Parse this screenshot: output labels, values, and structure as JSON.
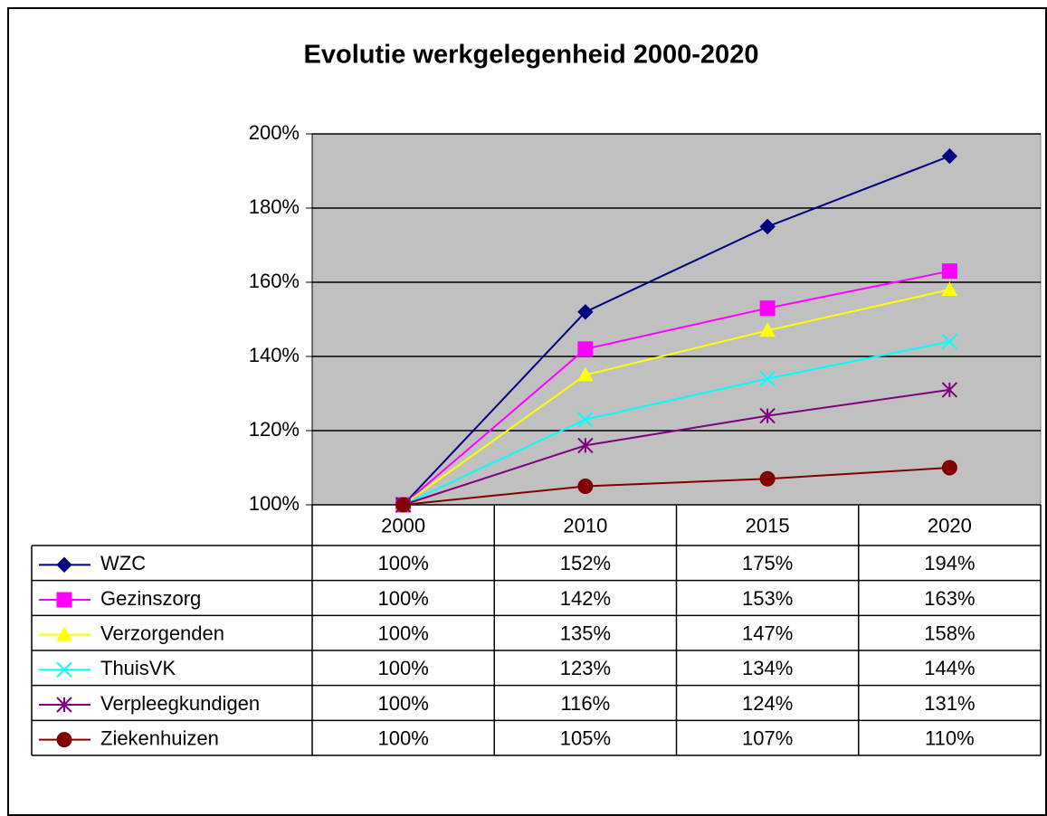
{
  "chart_data": {
    "type": "line",
    "title": "Evolutie werkgelegenheid 2000-2020",
    "categories": [
      "2000",
      "2010",
      "2015",
      "2020"
    ],
    "ylim": [
      100,
      200
    ],
    "yticks": [
      {
        "value": 100,
        "label": "100%"
      },
      {
        "value": 120,
        "label": "120%"
      },
      {
        "value": 140,
        "label": "140%"
      },
      {
        "value": 160,
        "label": "160%"
      },
      {
        "value": 180,
        "label": "180%"
      },
      {
        "value": 200,
        "label": "200%"
      }
    ],
    "grid": true,
    "series": [
      {
        "name": "WZC",
        "color": "#000080",
        "marker": "diamond",
        "values": [
          100,
          152,
          175,
          194
        ],
        "value_labels": [
          "100%",
          "152%",
          "175%",
          "194%"
        ]
      },
      {
        "name": "Gezinszorg",
        "color": "#ff00ff",
        "marker": "square",
        "values": [
          100,
          142,
          153,
          163
        ],
        "value_labels": [
          "100%",
          "142%",
          "153%",
          "163%"
        ]
      },
      {
        "name": "Verzorgenden",
        "color": "#ffff00",
        "marker": "triangle",
        "values": [
          100,
          135,
          147,
          158
        ],
        "value_labels": [
          "100%",
          "135%",
          "147%",
          "158%"
        ]
      },
      {
        "name": "ThuisVK",
        "color": "#00ffff",
        "marker": "x",
        "values": [
          100,
          123,
          134,
          144
        ],
        "value_labels": [
          "100%",
          "123%",
          "134%",
          "144%"
        ]
      },
      {
        "name": "Verpleegkundigen",
        "color": "#800080",
        "marker": "star",
        "values": [
          100,
          116,
          124,
          131
        ],
        "value_labels": [
          "100%",
          "116%",
          "124%",
          "131%"
        ]
      },
      {
        "name": "Ziekenhuizen",
        "color": "#800000",
        "marker": "circle",
        "values": [
          100,
          105,
          107,
          110
        ],
        "value_labels": [
          "100%",
          "105%",
          "107%",
          "110%"
        ]
      }
    ]
  }
}
